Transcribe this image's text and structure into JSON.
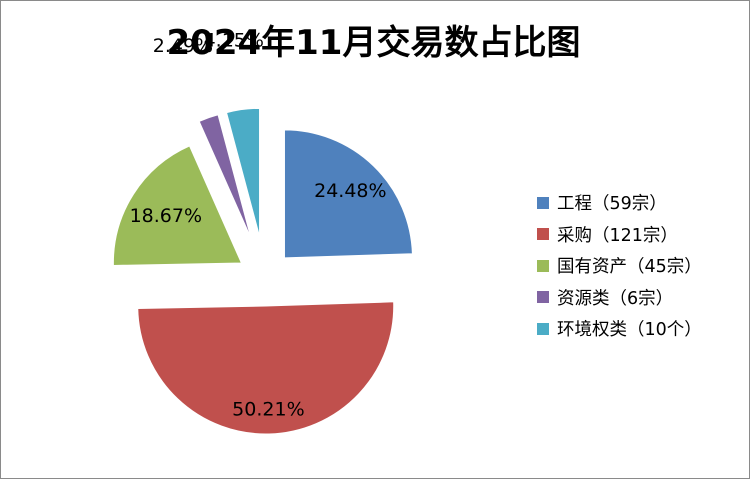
{
  "chart_data": {
    "type": "pie",
    "title": "2024年11月交易数占比图",
    "categories": [
      "工程（59宗）",
      "采购（121宗）",
      "国有资产（45宗）",
      "资源类（6宗）",
      "环境权类（10个）"
    ],
    "values": [
      24.48,
      50.21,
      18.67,
      2.49,
      4.15
    ],
    "data_labels": [
      "24.48%",
      "50.21%",
      "18.67%",
      "2.49%",
      "4.15%"
    ],
    "colors": [
      "#4F81BD",
      "#C0504D",
      "#9BBB59",
      "#8064A2",
      "#4BACC6"
    ],
    "exploded": true,
    "legend_position": "right"
  }
}
